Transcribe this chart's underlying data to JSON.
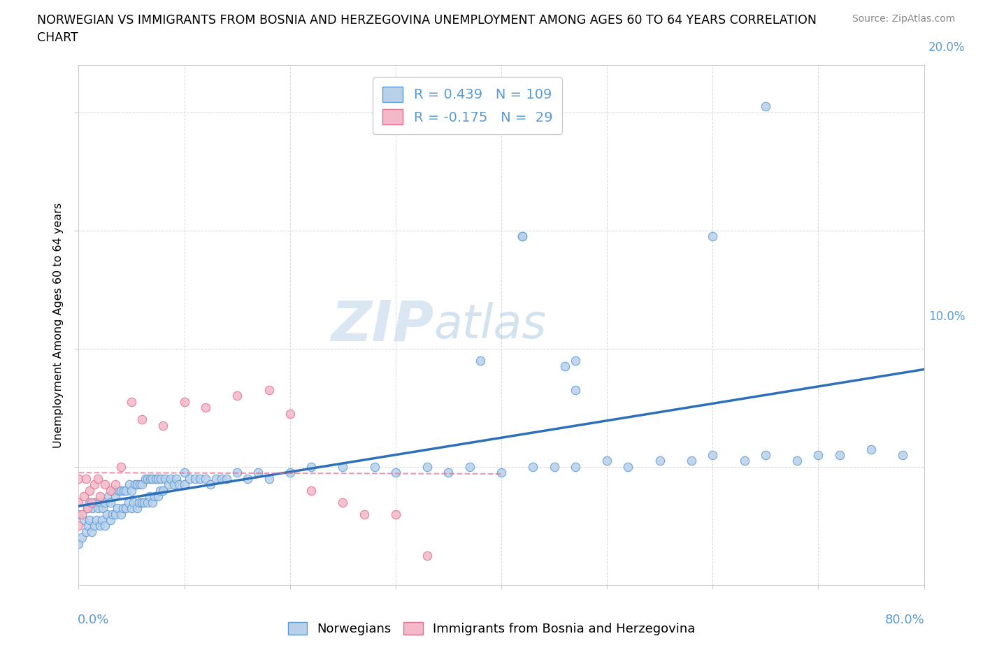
{
  "title_line1": "NORWEGIAN VS IMMIGRANTS FROM BOSNIA AND HERZEGOVINA UNEMPLOYMENT AMONG AGES 60 TO 64 YEARS CORRELATION",
  "title_line2": "CHART",
  "source": "Source: ZipAtlas.com",
  "ylabel": "Unemployment Among Ages 60 to 64 years",
  "xlim": [
    0.0,
    0.8
  ],
  "ylim": [
    0.0,
    0.44
  ],
  "xticks": [
    0.0,
    0.1,
    0.2,
    0.3,
    0.4,
    0.5,
    0.6,
    0.7,
    0.8
  ],
  "yticks": [
    0.1,
    0.2,
    0.3,
    0.4
  ],
  "grid_color": "#d8d8d8",
  "bg_color": "#ffffff",
  "nor_face": "#b8d0ea",
  "nor_edge": "#5b9bd5",
  "imm_face": "#f4b8c8",
  "imm_edge": "#e07090",
  "nor_line_color": "#2e6fba",
  "imm_line_color": "#e07090",
  "tick_color": "#5b9bd5",
  "R_nor": "0.439",
  "N_nor": "109",
  "R_imm": "-0.175",
  "N_imm": "29",
  "watermark_zip": "ZIP",
  "watermark_atlas": "atlas",
  "legend_bottom": [
    "Norwegians",
    "Immigrants from Bosnia and Herzegovina"
  ],
  "nor_x": [
    0.0,
    0.0,
    0.003,
    0.005,
    0.007,
    0.008,
    0.009,
    0.01,
    0.01,
    0.012,
    0.013,
    0.015,
    0.015,
    0.017,
    0.018,
    0.02,
    0.02,
    0.022,
    0.023,
    0.025,
    0.025,
    0.027,
    0.028,
    0.03,
    0.03,
    0.032,
    0.033,
    0.035,
    0.035,
    0.037,
    0.038,
    0.04,
    0.04,
    0.042,
    0.043,
    0.045,
    0.045,
    0.047,
    0.048,
    0.05,
    0.05,
    0.052,
    0.053,
    0.055,
    0.055,
    0.057,
    0.058,
    0.06,
    0.06,
    0.062,
    0.063,
    0.065,
    0.065,
    0.067,
    0.068,
    0.07,
    0.07,
    0.072,
    0.073,
    0.075,
    0.075,
    0.077,
    0.078,
    0.08,
    0.082,
    0.085,
    0.087,
    0.09,
    0.092,
    0.095,
    0.1,
    0.1,
    0.105,
    0.11,
    0.115,
    0.12,
    0.125,
    0.13,
    0.135,
    0.14,
    0.15,
    0.16,
    0.17,
    0.18,
    0.2,
    0.22,
    0.25,
    0.28,
    0.3,
    0.33,
    0.35,
    0.37,
    0.4,
    0.43,
    0.45,
    0.47,
    0.5,
    0.52,
    0.55,
    0.58,
    0.6,
    0.63,
    0.65,
    0.68,
    0.7,
    0.72,
    0.75,
    0.78,
    0.38,
    0.42
  ],
  "nor_y": [
    0.035,
    0.06,
    0.04,
    0.055,
    0.045,
    0.065,
    0.05,
    0.055,
    0.07,
    0.045,
    0.065,
    0.05,
    0.07,
    0.055,
    0.065,
    0.05,
    0.07,
    0.055,
    0.065,
    0.05,
    0.07,
    0.06,
    0.075,
    0.055,
    0.07,
    0.06,
    0.08,
    0.06,
    0.075,
    0.065,
    0.08,
    0.06,
    0.08,
    0.065,
    0.08,
    0.065,
    0.08,
    0.07,
    0.085,
    0.065,
    0.08,
    0.07,
    0.085,
    0.065,
    0.085,
    0.07,
    0.085,
    0.07,
    0.085,
    0.07,
    0.09,
    0.07,
    0.09,
    0.075,
    0.09,
    0.07,
    0.09,
    0.075,
    0.09,
    0.075,
    0.09,
    0.08,
    0.09,
    0.08,
    0.09,
    0.085,
    0.09,
    0.085,
    0.09,
    0.085,
    0.085,
    0.095,
    0.09,
    0.09,
    0.09,
    0.09,
    0.085,
    0.09,
    0.09,
    0.09,
    0.095,
    0.09,
    0.095,
    0.09,
    0.095,
    0.1,
    0.1,
    0.1,
    0.095,
    0.1,
    0.095,
    0.1,
    0.095,
    0.1,
    0.1,
    0.1,
    0.105,
    0.1,
    0.105,
    0.105,
    0.11,
    0.105,
    0.11,
    0.105,
    0.11,
    0.11,
    0.115,
    0.11,
    0.19,
    0.295
  ],
  "imm_x": [
    0.0,
    0.0,
    0.0,
    0.003,
    0.005,
    0.007,
    0.008,
    0.01,
    0.012,
    0.015,
    0.018,
    0.02,
    0.025,
    0.03,
    0.035,
    0.04,
    0.05,
    0.06,
    0.08,
    0.1,
    0.12,
    0.15,
    0.18,
    0.2,
    0.22,
    0.25,
    0.27,
    0.3,
    0.33
  ],
  "imm_y": [
    0.05,
    0.07,
    0.09,
    0.06,
    0.075,
    0.09,
    0.065,
    0.08,
    0.07,
    0.085,
    0.09,
    0.075,
    0.085,
    0.08,
    0.085,
    0.1,
    0.155,
    0.14,
    0.135,
    0.155,
    0.15,
    0.16,
    0.165,
    0.145,
    0.08,
    0.07,
    0.06,
    0.06,
    0.025
  ],
  "nor_outliers_x": [
    0.42,
    0.46,
    0.47,
    0.47,
    0.6,
    0.65
  ],
  "nor_outliers_y": [
    0.295,
    0.185,
    0.165,
    0.19,
    0.295,
    0.405
  ]
}
